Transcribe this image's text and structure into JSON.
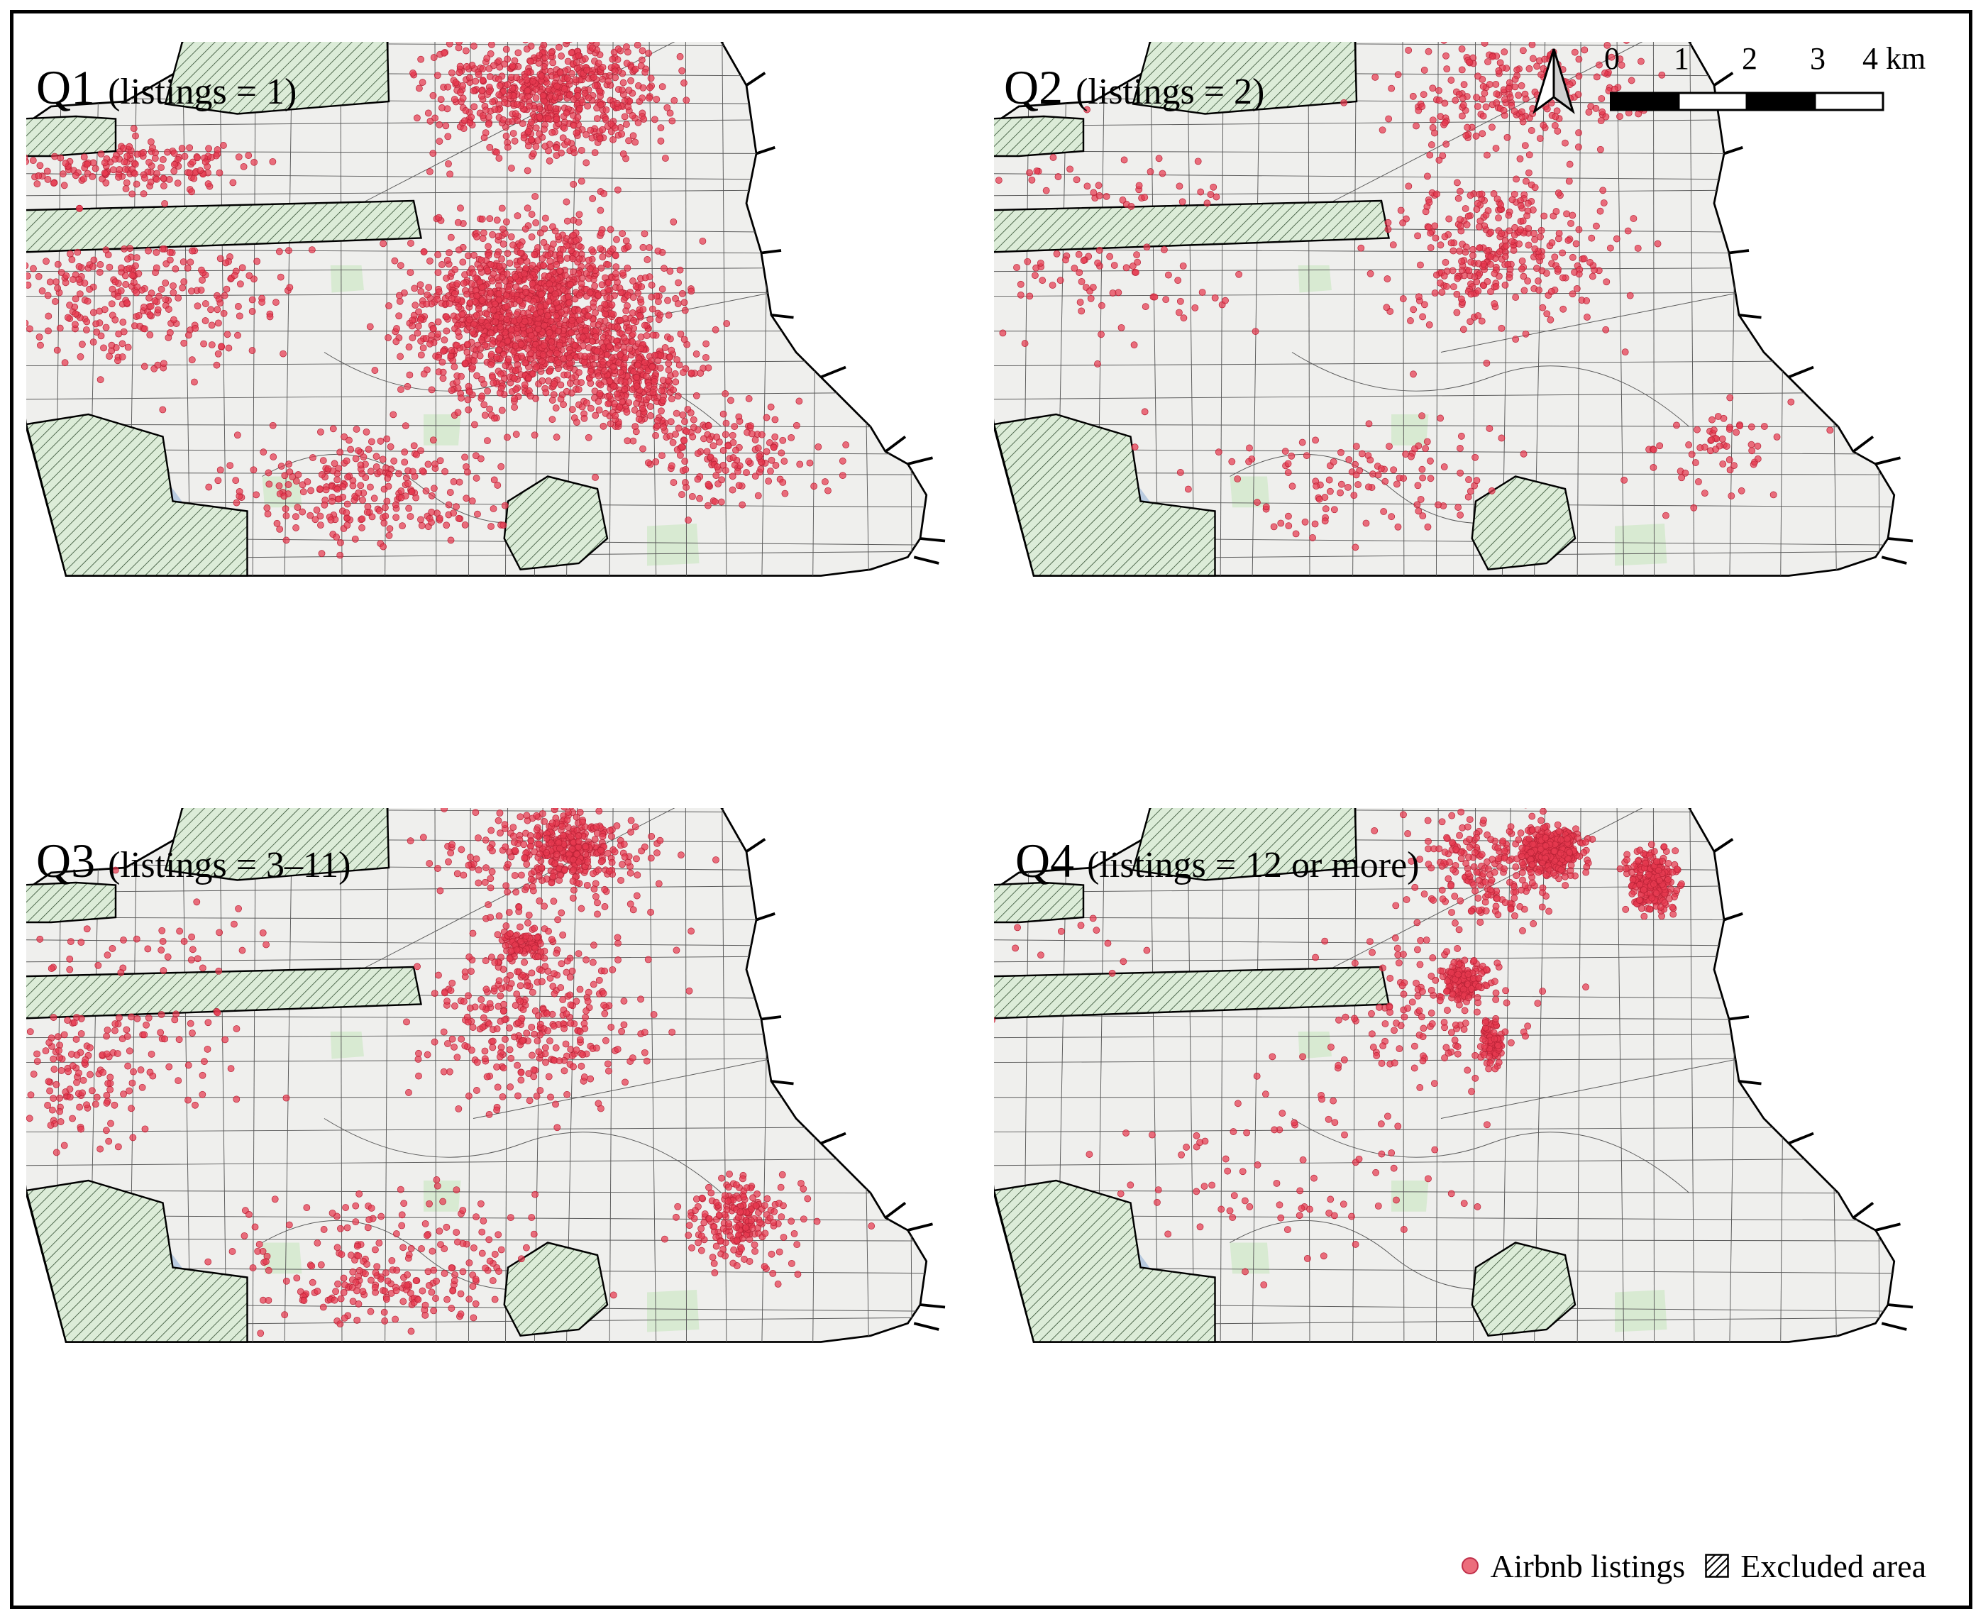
{
  "panels": [
    {
      "id": "q1",
      "label": "Q1",
      "subtitle": "(listings = 1)",
      "density": "high"
    },
    {
      "id": "q2",
      "label": "Q2",
      "subtitle": "(listings = 2)",
      "density": "medium"
    },
    {
      "id": "q3",
      "label": "Q3",
      "subtitle": "(listings = 3–11)",
      "density": "medium"
    },
    {
      "id": "q4",
      "label": "Q4",
      "subtitle": "(listings = 12 or more)",
      "density": "clustered"
    }
  ],
  "scale": {
    "ticks": [
      "0",
      "1",
      "2",
      "3"
    ],
    "end_label": "4 km"
  },
  "north_arrow": "north-arrow-icon",
  "legend": {
    "listings_label": "Airbnb listings",
    "excluded_label": "Excluded area"
  },
  "colors": {
    "listing_fill": "#e6394f",
    "listing_stroke": "#b82236",
    "excluded_fill": "#dcecd8",
    "land": "#efefed",
    "tract_line": "#5a5a5a",
    "park": "#d8ead2",
    "water": "#b9cbe0"
  }
}
